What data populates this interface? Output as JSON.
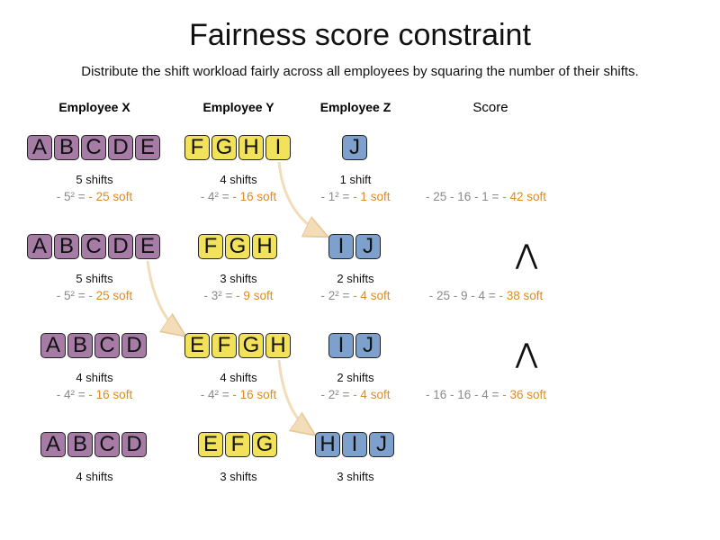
{
  "title": "Fairness score constraint",
  "subtitle": "Distribute the shift workload fairly across all employees by squaring the number of their shifts.",
  "headers": {
    "x": "Employee X",
    "y": "Employee Y",
    "z": "Employee Z",
    "score": "Score"
  },
  "colors": {
    "employee_x": "#a67ca6",
    "employee_y": "#f2e25a",
    "employee_z": "#7da0cc",
    "penalty_text": "#e08a1e",
    "formula_text": "#8a8a8a",
    "arrow": "#f3dcb8"
  },
  "rows": [
    {
      "x": {
        "tiles": [
          "A",
          "B",
          "C",
          "D",
          "E"
        ],
        "shifts": "5 shifts",
        "calc": "- 5² =",
        "result": "- 25 soft"
      },
      "y": {
        "tiles": [
          "F",
          "G",
          "H",
          "I"
        ],
        "shifts": "4 shifts",
        "calc": "- 4² =",
        "result": "- 16 soft"
      },
      "z": {
        "tiles": [
          "J"
        ],
        "shifts": "1 shift",
        "calc": "- 1² =",
        "result": "- 1 soft"
      },
      "score": {
        "calc": "- 25 - 16 - 1 =",
        "result": "- 42 soft"
      }
    },
    {
      "x": {
        "tiles": [
          "A",
          "B",
          "C",
          "D",
          "E"
        ],
        "shifts": "5 shifts",
        "calc": "- 5² =",
        "result": "- 25 soft"
      },
      "y": {
        "tiles": [
          "F",
          "G",
          "H"
        ],
        "shifts": "3 shifts",
        "calc": "- 3² =",
        "result": "- 9 soft"
      },
      "z": {
        "tiles": [
          "I",
          "J"
        ],
        "shifts": "2 shifts",
        "calc": "- 2² =",
        "result": "- 4 soft"
      },
      "score": {
        "calc": "- 25 - 9 - 4 =",
        "result": "- 38 soft"
      },
      "ineq": "⋀"
    },
    {
      "x": {
        "tiles": [
          "A",
          "B",
          "C",
          "D"
        ],
        "shifts": "4 shifts",
        "calc": "- 4² =",
        "result": "- 16 soft"
      },
      "y": {
        "tiles": [
          "E",
          "F",
          "G",
          "H"
        ],
        "shifts": "4 shifts",
        "calc": "- 4² =",
        "result": "- 16 soft"
      },
      "z": {
        "tiles": [
          "I",
          "J"
        ],
        "shifts": "2 shifts",
        "calc": "- 2² =",
        "result": "- 4 soft"
      },
      "score": {
        "calc": "- 16 - 16 - 4 =",
        "result": "- 36 soft"
      },
      "ineq": "⋀"
    },
    {
      "x": {
        "tiles": [
          "A",
          "B",
          "C",
          "D"
        ],
        "shifts": "4 shifts"
      },
      "y": {
        "tiles": [
          "E",
          "F",
          "G"
        ],
        "shifts": "3 shifts"
      },
      "z": {
        "tiles": [
          "H",
          "I",
          "J"
        ],
        "shifts": "3 shifts"
      }
    }
  ]
}
